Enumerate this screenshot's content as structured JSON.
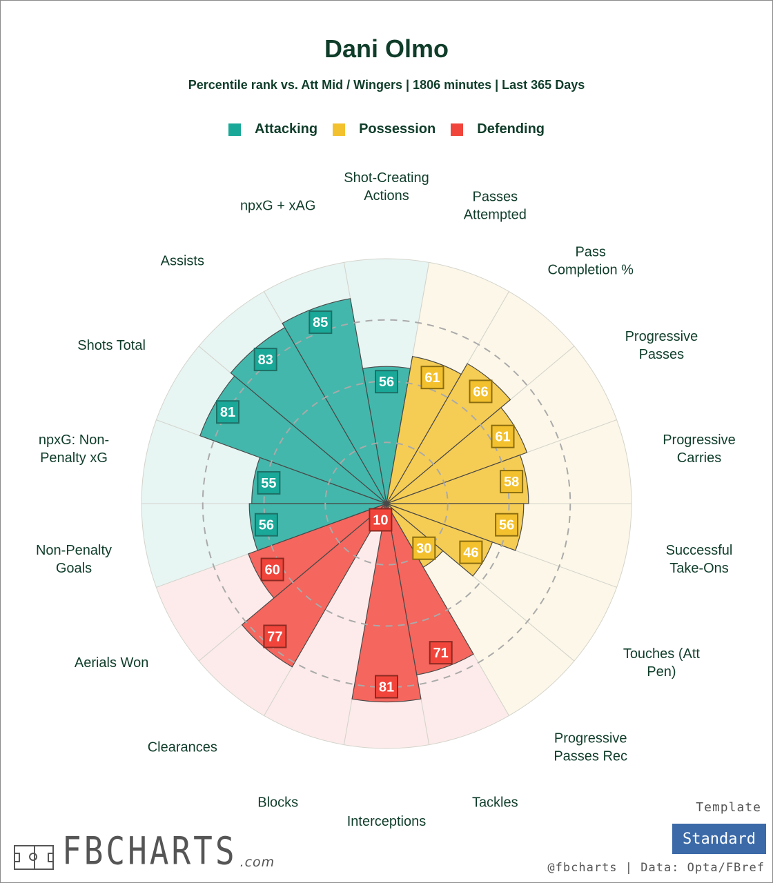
{
  "chart_data": {
    "type": "radial-bar",
    "title": "Dani Olmo",
    "subtitle": "Percentile rank vs. Att Mid / Wingers | 1806 minutes | Last 365 Days",
    "rlim": [
      0,
      100
    ],
    "legend": [
      {
        "name": "Attacking",
        "color": "#1aa898"
      },
      {
        "name": "Possession",
        "color": "#f3c12e"
      },
      {
        "name": "Defending",
        "color": "#f1453b"
      }
    ],
    "categories": [
      {
        "label": [
          "Shot-Creating",
          "Actions"
        ],
        "value": 56,
        "group": 0
      },
      {
        "label": [
          "Passes",
          "Attempted"
        ],
        "value": 61,
        "group": 1
      },
      {
        "label": [
          "Pass",
          "Completion %"
        ],
        "value": 66,
        "group": 1
      },
      {
        "label": [
          "Progressive",
          "Passes"
        ],
        "value": 61,
        "group": 1
      },
      {
        "label": [
          "Progressive",
          "Carries"
        ],
        "value": 58,
        "group": 1
      },
      {
        "label": [
          "Successful",
          "Take-Ons"
        ],
        "value": 56,
        "group": 1
      },
      {
        "label": [
          "Touches (Att",
          "Pen)"
        ],
        "value": 46,
        "group": 1
      },
      {
        "label": [
          "Progressive",
          "Passes Rec"
        ],
        "value": 30,
        "group": 1
      },
      {
        "label": [
          "Tackles"
        ],
        "value": 71,
        "group": 2
      },
      {
        "label": [
          "Interceptions"
        ],
        "value": 81,
        "group": 2
      },
      {
        "label": [
          "Blocks"
        ],
        "value": 10,
        "group": 2
      },
      {
        "label": [
          "Clearances"
        ],
        "value": 77,
        "group": 2
      },
      {
        "label": [
          "Aerials Won"
        ],
        "value": 60,
        "group": 2
      },
      {
        "label": [
          "Non-Penalty",
          "Goals"
        ],
        "value": 56,
        "group": 0
      },
      {
        "label": [
          "npxG: Non-",
          "Penalty xG"
        ],
        "value": 55,
        "group": 0
      },
      {
        "label": [
          "Shots Total"
        ],
        "value": 81,
        "group": 0
      },
      {
        "label": [
          "Assists"
        ],
        "value": 83,
        "group": 0
      },
      {
        "label": [
          "npxG + xAG"
        ],
        "value": 85,
        "group": 0
      }
    ]
  },
  "footer": {
    "template_label": "Template",
    "template_value": "Standard",
    "credit": "@fbcharts | Data: Opta/FBref",
    "logo_text": "FBCHARTS",
    "logo_domain": ".com"
  }
}
